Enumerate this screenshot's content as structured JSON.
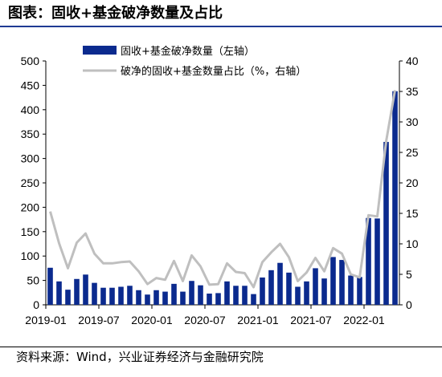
{
  "title": "图表：固收+基金破净数量及占比",
  "source": "资料来源：Wind，兴业证券经济与金融研究院",
  "chart_data": {
    "type": "bar",
    "legend": [
      {
        "name": "固收+基金破净数量（左轴）",
        "kind": "bar",
        "color": "#0b2a8e"
      },
      {
        "name": "破净的固收+基金数量占比（%，右轴）",
        "kind": "line",
        "color": "#bfbfbf"
      }
    ],
    "x_tick_labels": [
      "2019-01",
      "2019-07",
      "2020-01",
      "2020-07",
      "2021-01",
      "2021-07",
      "2022-01"
    ],
    "left_axis": {
      "min": 0,
      "max": 500,
      "ticks": [
        0,
        50,
        100,
        150,
        200,
        250,
        300,
        350,
        400,
        450,
        500
      ]
    },
    "right_axis": {
      "min": 0,
      "max": 40,
      "ticks": [
        0,
        5,
        10,
        15,
        20,
        25,
        30,
        35,
        40
      ]
    },
    "series": [
      {
        "name": "固收+基金破净数量（左轴）",
        "axis": "left",
        "values": [
          76,
          48,
          31,
          53,
          62,
          45,
          35,
          35,
          37,
          39,
          30,
          21,
          30,
          27,
          43,
          27,
          49,
          40,
          23,
          24,
          48,
          39,
          39,
          22,
          56,
          71,
          86,
          66,
          37,
          48,
          75,
          54,
          98,
          92,
          60,
          57,
          178,
          177,
          334,
          438
        ]
      },
      {
        "name": "破净的固收+基金数量占比（%，右轴）",
        "axis": "right",
        "values": [
          15.3,
          10.1,
          6.0,
          10.2,
          11.7,
          8.4,
          6.8,
          6.8,
          7.0,
          7.1,
          5.5,
          3.4,
          4.4,
          4.1,
          7.2,
          3.9,
          8.1,
          6.3,
          3.3,
          3.4,
          6.8,
          5.4,
          5.2,
          2.9,
          7.0,
          8.6,
          10.0,
          7.8,
          3.9,
          5.3,
          7.7,
          5.5,
          9.3,
          8.4,
          5.0,
          4.5,
          14.7,
          14.5,
          26.8,
          35.2
        ]
      }
    ]
  }
}
